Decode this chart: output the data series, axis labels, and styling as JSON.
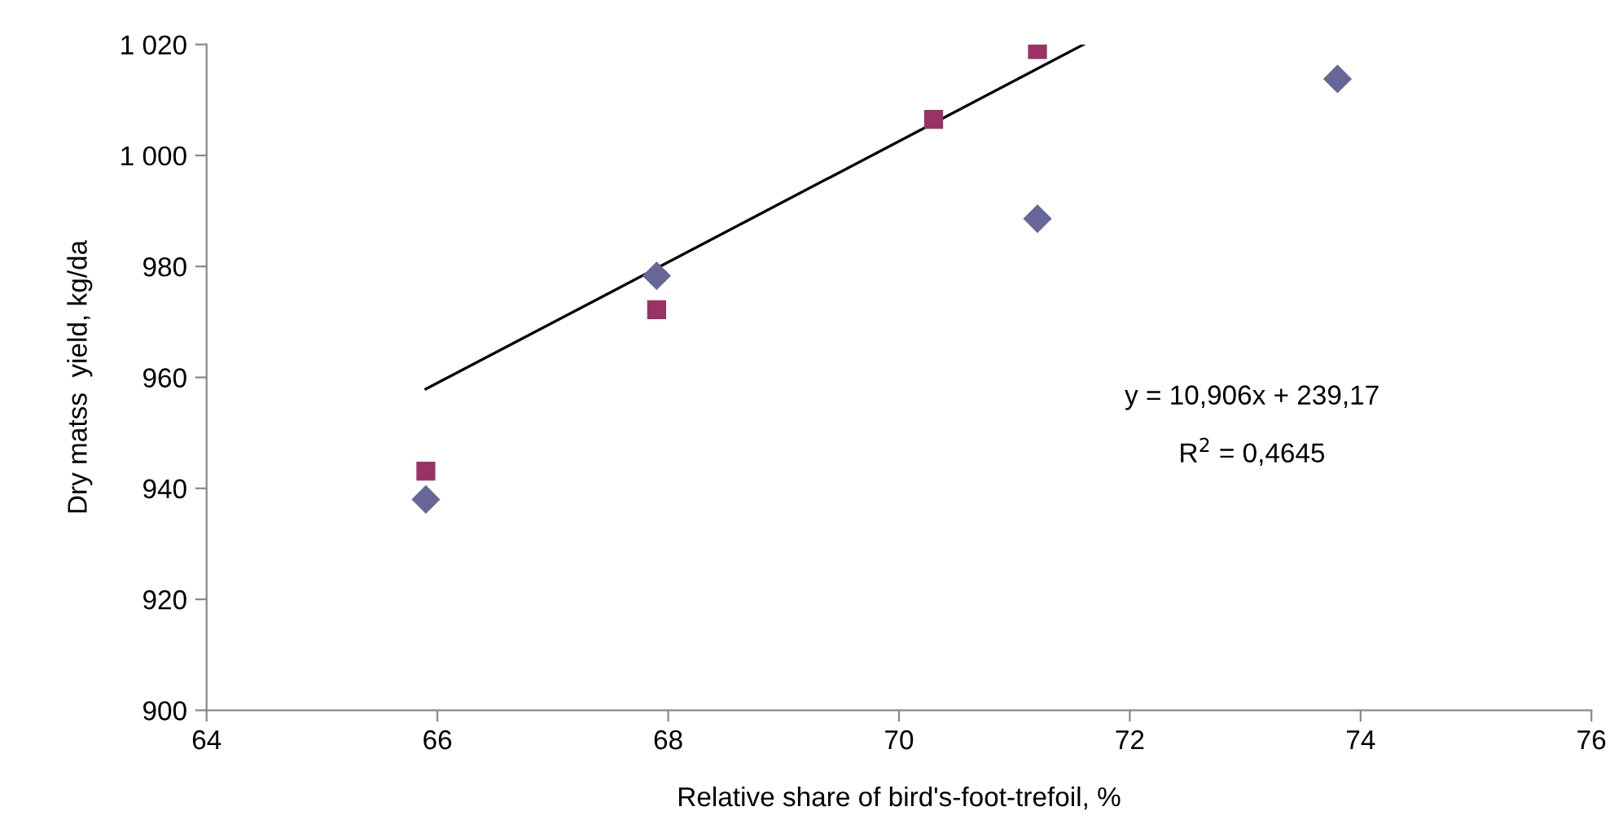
{
  "chart_data": {
    "type": "scatter",
    "xlabel": "Relative share of bird's-foot-trefoil, %",
    "ylabel": "Dry matss  yield, kg/da",
    "series": [
      {
        "color": "#666699",
        "marker": "diamond",
        "x": [
          65.9,
          67.9,
          71.2,
          73.8
        ],
        "values": [
          938,
          978.3,
          988.6,
          1013.8
        ]
      },
      {
        "color": "#993366",
        "marker": "square",
        "x": [
          65.9,
          67.9,
          70.3,
          71.2
        ],
        "values": [
          943.1,
          972.2,
          1006.5,
          1019.1
        ]
      },
      {
        "type": "line",
        "color": "#000000",
        "marker": "none",
        "line_style": "solid",
        "x": [
          65.9,
          71.6
        ],
        "values": [
          957.9,
          1020.0
        ]
      }
    ],
    "annotations": [
      "y = 10,906x + 239,17",
      "R$^{2}$ = 0,4645"
    ],
    "xlim": [
      64,
      76
    ],
    "xticks": [
      64,
      66,
      68,
      70,
      72,
      74,
      76
    ],
    "ylim": [
      900,
      1020
    ],
    "yticks": [
      900,
      920,
      940,
      960,
      980,
      {
        "value": 1000,
        "label": "1 000"
      },
      {
        "value": 1020,
        "label": "1 020"
      }
    ],
    "grid": false,
    "legend": false
  }
}
